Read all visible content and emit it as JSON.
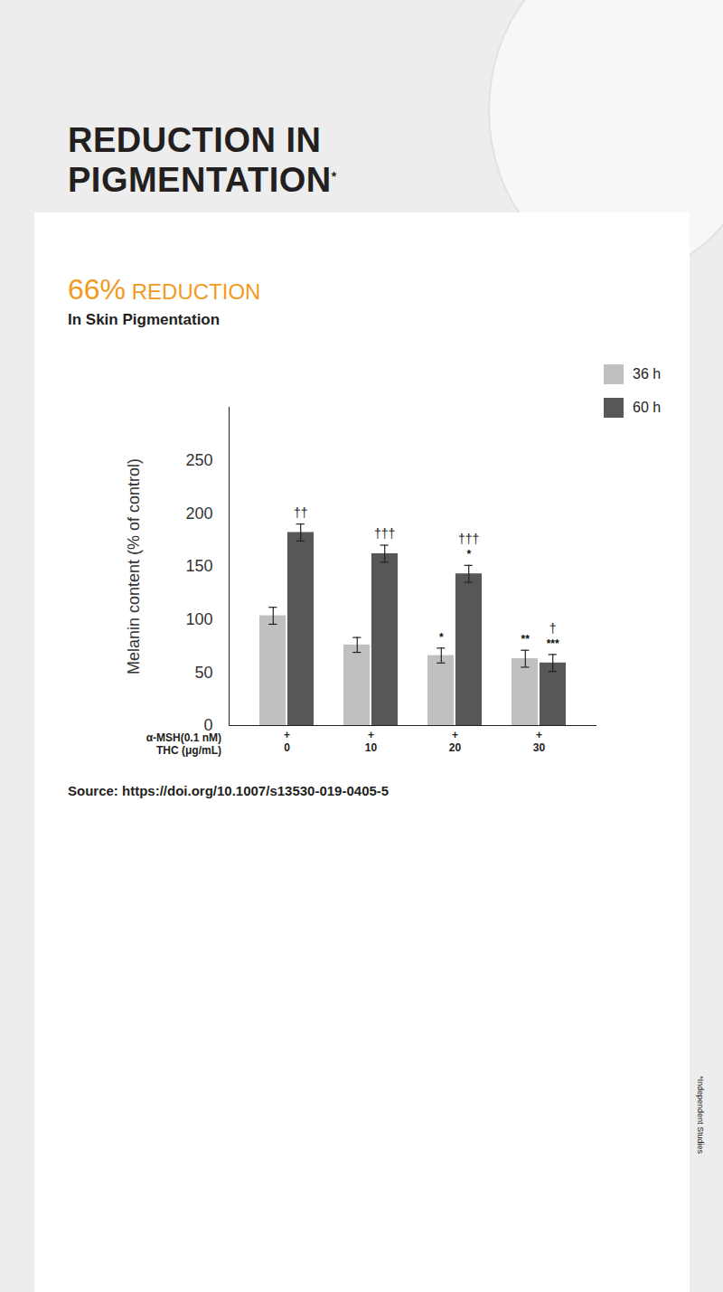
{
  "chart_data": {
    "type": "bar",
    "title": "REDUCTION IN PIGMENTATION*",
    "subtitle": "66% REDUCTION",
    "description": "In Skin Pigmentation",
    "source": "Source: https://doi.org/10.1007/s13530-019-0405-5",
    "footnote": "*Independent Studies",
    "y_label": "Melanin content (% of control)",
    "x_label": "THC (μg/mL)",
    "categories": [
      "0",
      "10",
      "20",
      "30"
    ],
    "x_row_top": {
      "label": "α-MSH(0.1 nM)",
      "values": [
        "+",
        "+",
        "+",
        "+"
      ]
    },
    "ylim": [
      0,
      300
    ],
    "yticks": [
      0,
      50,
      100,
      150,
      200,
      250
    ],
    "grid": false,
    "legend": "top-right",
    "series": [
      {
        "name": "36 h",
        "color": "#c0c0c0",
        "values": [
          103.5,
          76,
          66,
          63
        ],
        "errors": [
          8,
          7,
          7,
          8
        ],
        "significance": [
          null,
          null,
          "*",
          "**"
        ],
        "daggers": [
          null,
          null,
          null,
          null
        ]
      },
      {
        "name": "60 h",
        "color": "#575757",
        "values": [
          182,
          162,
          143,
          59
        ],
        "errors": [
          8,
          8,
          8,
          8
        ],
        "significance": [
          null,
          null,
          "*",
          "***"
        ],
        "daggers": [
          "††",
          "†††",
          "†††",
          "†"
        ]
      }
    ]
  }
}
